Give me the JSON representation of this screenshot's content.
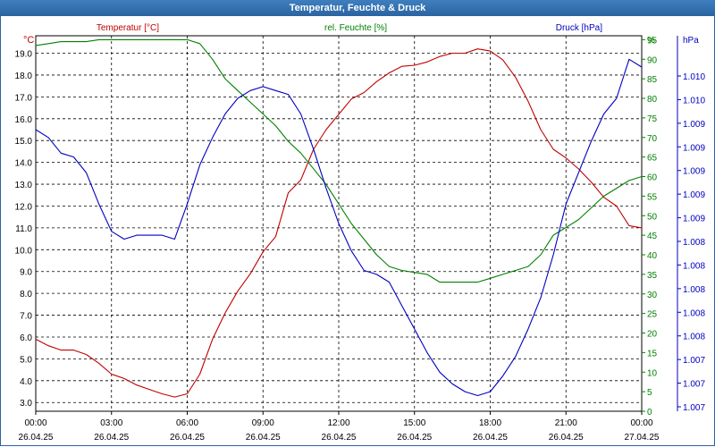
{
  "window": {
    "title": "Temperatur, Feuchte & Druck"
  },
  "colors": {
    "temperature": "#c00000",
    "humidity": "#008000",
    "pressure": "#0000c0",
    "grid": "#000000",
    "axis_text": "#000000"
  },
  "chart_data": {
    "type": "line",
    "title": "Temperatur, Feuchte & Druck",
    "series_labels": {
      "temperature": "Temperatur [°C]",
      "humidity": "rel. Feuchte [%]",
      "pressure": "Druck [hPa]"
    },
    "axis_units": {
      "left": "°C",
      "right": "%",
      "far_right": "hPa"
    },
    "x_ticks": [
      {
        "time": "00:00",
        "date": "26.04.25"
      },
      {
        "time": "03:00",
        "date": "26.04.25"
      },
      {
        "time": "06:00",
        "date": "26.04.25"
      },
      {
        "time": "09:00",
        "date": "26.04.25"
      },
      {
        "time": "12:00",
        "date": "26.04.25"
      },
      {
        "time": "15:00",
        "date": "26.04.25"
      },
      {
        "time": "18:00",
        "date": "26.04.25"
      },
      {
        "time": "21:00",
        "date": "26.04.25"
      },
      {
        "time": "00:00",
        "date": "27.04.25"
      }
    ],
    "x_range_hours": [
      0,
      24
    ],
    "temperature_axis": {
      "min": 2.6,
      "max": 19.8,
      "ticks": [
        "3.0",
        "4.0",
        "5.0",
        "6.0",
        "7.0",
        "8.0",
        "9.0",
        "10.0",
        "11.0",
        "12.0",
        "13.0",
        "14.0",
        "15.0",
        "16.0",
        "17.0",
        "18.0",
        "19.0"
      ]
    },
    "humidity_axis": {
      "min": 0,
      "max": 96,
      "ticks": [
        "0",
        "5",
        "10",
        "15",
        "20",
        "25",
        "30",
        "35",
        "40",
        "45",
        "50",
        "55",
        "60",
        "65",
        "70",
        "75",
        "80",
        "85",
        "90",
        "95"
      ],
      "unit_tick": "%"
    },
    "pressure_axis": {
      "ticks": [
        "1.007",
        "1.007",
        "1.007",
        "1.008",
        "1.008",
        "1.008",
        "1.008",
        "1.008",
        "1.009",
        "1.009",
        "1.009",
        "1.009",
        "1.009",
        "1.010",
        "1.010"
      ]
    },
    "series": [
      {
        "name": "temperature",
        "x": [
          0,
          0.5,
          1,
          1.5,
          2,
          2.5,
          3,
          3.5,
          4,
          4.5,
          5,
          5.5,
          6,
          6.5,
          7,
          7.5,
          8,
          8.5,
          9,
          9.5,
          10,
          10.5,
          11,
          11.5,
          12,
          12.5,
          13,
          13.5,
          14,
          14.5,
          15,
          15.5,
          16,
          16.5,
          17,
          17.5,
          18,
          18.5,
          19,
          19.5,
          20,
          20.5,
          21,
          21.5,
          22,
          22.5,
          23,
          23.5,
          24
        ],
        "values": [
          5.9,
          5.6,
          5.4,
          5.4,
          5.2,
          4.8,
          4.3,
          4.1,
          3.8,
          3.6,
          3.4,
          3.25,
          3.4,
          4.3,
          5.9,
          7.1,
          8.1,
          8.9,
          9.9,
          10.6,
          12.6,
          13.2,
          14.6,
          15.5,
          16.2,
          16.9,
          17.2,
          17.7,
          18.1,
          18.4,
          18.45,
          18.6,
          18.85,
          19.0,
          19.0,
          19.2,
          19.1,
          18.7,
          17.9,
          16.8,
          15.5,
          14.6,
          14.2,
          13.7,
          13.1,
          12.4,
          12.0,
          11.1,
          11.0
        ]
      },
      {
        "name": "humidity",
        "x": [
          0,
          0.5,
          1,
          1.5,
          2,
          2.5,
          3,
          3.5,
          4,
          4.5,
          5,
          5.5,
          6,
          6.5,
          7,
          7.5,
          8,
          8.5,
          9,
          9.5,
          10,
          10.5,
          11,
          11.5,
          12,
          12.5,
          13,
          13.5,
          14,
          14.5,
          15,
          15.5,
          16,
          16.5,
          17,
          17.5,
          18,
          18.5,
          19,
          19.5,
          20,
          20.5,
          21,
          21.5,
          22,
          22.5,
          23,
          23.5,
          24
        ],
        "values": [
          93.5,
          94,
          94.5,
          94.5,
          94.5,
          95,
          95,
          95,
          95,
          95,
          95,
          95,
          95,
          94,
          90,
          85,
          82,
          79,
          76,
          73,
          69,
          66,
          62,
          58,
          53,
          48,
          44,
          40,
          37,
          36,
          35.5,
          35,
          33,
          33,
          33,
          33,
          34,
          35,
          36,
          37,
          40,
          45,
          47,
          49,
          52,
          55,
          57,
          59,
          60
        ]
      },
      {
        "name": "pressure",
        "x": [
          0,
          0.5,
          1,
          1.5,
          2,
          2.5,
          3,
          3.5,
          4,
          4.5,
          5,
          5.5,
          6,
          6.5,
          7,
          7.5,
          8,
          8.5,
          9,
          9.5,
          10,
          10.5,
          11,
          11.5,
          12,
          12.5,
          13,
          13.5,
          14,
          14.5,
          15,
          15.5,
          16,
          16.5,
          17,
          17.5,
          18,
          18.5,
          19,
          19.5,
          20,
          20.5,
          21,
          21.5,
          22,
          22.5,
          23,
          23.5,
          24
        ],
        "values": [
          72,
          70,
          66,
          65,
          61,
          53,
          46,
          44,
          45,
          45,
          45,
          44,
          53,
          63,
          70,
          76,
          80,
          82,
          83,
          82,
          81,
          76,
          67,
          57,
          48,
          41,
          36,
          35,
          33,
          27,
          21,
          15,
          10,
          7,
          5,
          4,
          5,
          9,
          14,
          21,
          29,
          40,
          53,
          61,
          69,
          76,
          80,
          90,
          88
        ]
      }
    ]
  }
}
